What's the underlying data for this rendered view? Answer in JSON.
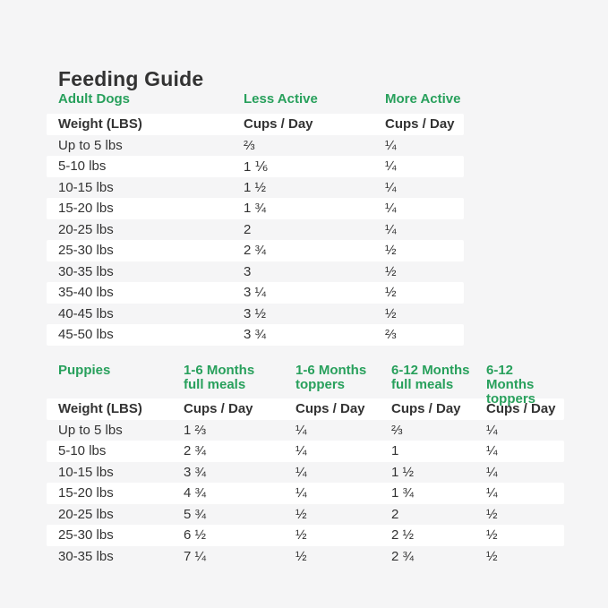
{
  "page": {
    "title": "Feeding Guide",
    "background_color": "#f5f5f6",
    "accent_green": "#28a05c",
    "text_color": "#333333"
  },
  "adult_table": {
    "section_label": "Adult Dogs",
    "col_labels": [
      "Less Active",
      "More Active"
    ],
    "header": {
      "weight": "Weight (LBS)",
      "cups_day": "Cups / Day"
    },
    "rows": [
      {
        "weight": "Up to 5 lbs",
        "less_active": "⅔",
        "more_active": "¼"
      },
      {
        "weight": "5-10 lbs",
        "less_active": "1 ⅙",
        "more_active": "¼"
      },
      {
        "weight": "10-15 lbs",
        "less_active": "1 ½",
        "more_active": "¼"
      },
      {
        "weight": "15-20 lbs",
        "less_active": "1 ¾",
        "more_active": "¼"
      },
      {
        "weight": "20-25 lbs",
        "less_active": "2",
        "more_active": "¼"
      },
      {
        "weight": "25-30 lbs",
        "less_active": "2 ¾",
        "more_active": "½"
      },
      {
        "weight": "30-35 lbs",
        "less_active": "3",
        "more_active": "½"
      },
      {
        "weight": "35-40 lbs",
        "less_active": "3 ¼",
        "more_active": "½"
      },
      {
        "weight": "40-45 lbs",
        "less_active": "3 ½",
        "more_active": "½"
      },
      {
        "weight": "45-50 lbs",
        "less_active": "3 ¾",
        "more_active": "⅔"
      }
    ]
  },
  "puppy_table": {
    "section_label": "Puppies",
    "col_labels": [
      "1-6 Months\nfull meals",
      "1-6 Months\ntoppers",
      "6-12 Months\nfull meals",
      "6-12 Months\ntoppers"
    ],
    "header": {
      "weight": "Weight (LBS)",
      "cups_day": "Cups / Day"
    },
    "rows": [
      {
        "weight": "Up to 5 lbs",
        "m1_6_full": "1 ⅔",
        "m1_6_toppers": "¼",
        "m6_12_full": "⅔",
        "m6_12_toppers": "¼"
      },
      {
        "weight": "5-10 lbs",
        "m1_6_full": "2 ¾",
        "m1_6_toppers": "¼",
        "m6_12_full": "1",
        "m6_12_toppers": "¼"
      },
      {
        "weight": "10-15 lbs",
        "m1_6_full": "3 ¾",
        "m1_6_toppers": "¼",
        "m6_12_full": "1 ½",
        "m6_12_toppers": "¼"
      },
      {
        "weight": "15-20 lbs",
        "m1_6_full": "4 ¾",
        "m1_6_toppers": "¼",
        "m6_12_full": "1 ¾",
        "m6_12_toppers": "¼"
      },
      {
        "weight": "20-25 lbs",
        "m1_6_full": "5 ¾",
        "m1_6_toppers": "½",
        "m6_12_full": "2",
        "m6_12_toppers": "½"
      },
      {
        "weight": "25-30 lbs",
        "m1_6_full": "6 ½",
        "m1_6_toppers": "½",
        "m6_12_full": "2 ½",
        "m6_12_toppers": "½"
      },
      {
        "weight": "30-35 lbs",
        "m1_6_full": "7 ¼",
        "m1_6_toppers": "½",
        "m6_12_full": "2 ¾",
        "m6_12_toppers": "½"
      }
    ]
  }
}
